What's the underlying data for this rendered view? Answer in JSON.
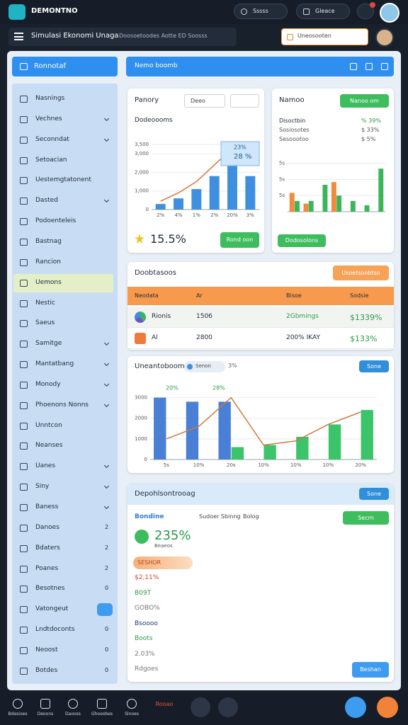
{
  "topbar": {
    "app_name": "DEMONTNO",
    "pills": [
      "Sssss",
      "Gleace"
    ]
  },
  "header": {
    "title": "Simulasi Ekonomi Unaga",
    "subtitle": "Doosoetoodes Aotte ED Soosss",
    "search": "Uneosooten"
  },
  "sidebar": {
    "title": "Ronnotaf",
    "active": 9,
    "items": [
      {
        "label": "Nasnings"
      },
      {
        "label": "Vechnes",
        "expandable": true
      },
      {
        "label": "Seconndat",
        "expandable": true
      },
      {
        "label": "Setoacian"
      },
      {
        "label": "Uestemgtatonent"
      },
      {
        "label": "Dasted",
        "expandable": true
      },
      {
        "label": "Podoenteleis"
      },
      {
        "label": "Bastnag"
      },
      {
        "label": "Rancion"
      },
      {
        "label": "Uemons"
      },
      {
        "label": "Nestic"
      },
      {
        "label": "Saeus"
      },
      {
        "label": "Samitge",
        "expandable": true
      },
      {
        "label": "Mantatbang",
        "expandable": true
      },
      {
        "label": "Monody",
        "expandable": true
      },
      {
        "label": "Phoenons Nonns",
        "expandable": true
      },
      {
        "label": "Unntcon"
      },
      {
        "label": "Neanses"
      },
      {
        "label": "Uanes",
        "expandable": true
      },
      {
        "label": "Siny",
        "expandable": true
      },
      {
        "label": "Baness",
        "expandable": true
      },
      {
        "label": "Danoes",
        "count": "2"
      },
      {
        "label": "Bdaters",
        "count": "2"
      },
      {
        "label": "Poanes",
        "count": "2"
      },
      {
        "label": "Besotnes",
        "count": "0"
      },
      {
        "label": "Vatongeut",
        "badge": true
      },
      {
        "label": "Lndtdoconts",
        "count": "0"
      },
      {
        "label": "Neoost",
        "count": "0"
      },
      {
        "label": "Botdes",
        "count": "0"
      }
    ]
  },
  "banner": {
    "title": "Nemo boomb"
  },
  "overview": {
    "title": "Panory",
    "dropdown": "Deeo",
    "subtitle": "Dodeoooms",
    "stat": "15.5%",
    "button": "Rond oon",
    "chart": {
      "type": "bar",
      "categories": [
        "2%",
        "4%",
        "1%",
        "2%",
        "20%",
        "3%"
      ],
      "series": [
        {
          "color": "#3f8fe0",
          "values": [
            300,
            600,
            1100,
            1800,
            3000,
            1800
          ]
        },
        {
          "color": "#d9743b",
          "style": "line",
          "values": [
            450,
            900,
            1500,
            2400,
            3300,
            null
          ]
        }
      ],
      "ylim": [
        0,
        3500
      ],
      "yticks": [
        0,
        {
          "value": 1000,
          "label": "1,000"
        },
        {
          "value": 2000,
          "label": "2,000"
        },
        {
          "value": 3000,
          "label": "3,000"
        },
        {
          "value": 3500,
          "label": "3,500"
        }
      ],
      "annotations": [
        "23%",
        "28 %"
      ]
    }
  },
  "side_card": {
    "title": "Namoo",
    "button": "Nanoo om",
    "footer_button": "Dodosolons",
    "lines": [
      {
        "left": "Disoctbin",
        "right": "% 39%"
      },
      {
        "left": "Sosiosotes",
        "right": "$ 33%"
      },
      {
        "left": "Sesoootoo",
        "right": "$ 5%"
      }
    ],
    "chart": {
      "type": "bar",
      "categories": [
        null,
        null,
        null,
        null,
        null,
        null,
        null
      ],
      "series": [
        {
          "color": "#f08a3c",
          "values": [
            35,
            15,
            null,
            55,
            null,
            null,
            null
          ]
        },
        {
          "color": "#3cb55a",
          "values": [
            20,
            20,
            50,
            30,
            20,
            12,
            80
          ]
        }
      ],
      "ylim": [
        0,
        100
      ],
      "yticks": [
        {
          "value": 30,
          "label": "5s"
        },
        {
          "value": 60,
          "label": "5s"
        },
        {
          "value": 90,
          "label": "5s"
        }
      ]
    }
  },
  "table": {
    "title": "Doobtasoos",
    "button": "Usoetsoobtso",
    "columns": [
      "Neodata",
      "Ar",
      "Bisoe",
      "Sodsie"
    ],
    "rows": [
      [
        "Rionis",
        "1506",
        "2Gbmings",
        "$1339%"
      ],
      [
        "Al",
        "2800",
        "200% IKAY",
        "$133%"
      ]
    ]
  },
  "trend": {
    "title": "Uneantoboom",
    "chip": "Senon",
    "chip_note": "3%",
    "button": "Sone",
    "chart": {
      "type": "bar",
      "categories": [
        "5s",
        "10%",
        "20s",
        "10%",
        "10%",
        "10%",
        "20%"
      ],
      "series": [
        {
          "color": "#4a7fd6",
          "values": [
            3000,
            2800,
            2800,
            null,
            null,
            null,
            null
          ]
        },
        {
          "color": "#3cc46a",
          "values": [
            null,
            null,
            600,
            700,
            1100,
            1700,
            2400
          ]
        },
        {
          "color": "#d07a3a",
          "style": "line",
          "values": [
            1000,
            1600,
            3000,
            700,
            900,
            1700,
            2300
          ]
        }
      ],
      "ylim": [
        0,
        3500
      ],
      "yticks": [
        0,
        1000,
        2000,
        3000
      ],
      "annotations": [
        "20%",
        "28%"
      ]
    }
  },
  "detail": {
    "title": "Depohlsontrooag",
    "button": "Sone",
    "subheading": "Bondine",
    "tabs": [
      "Sudoer Sbinng",
      "Bolog"
    ],
    "action": "Secrn",
    "stat": "235%",
    "stat_note": "Beaeos",
    "tag": "SESHOR",
    "lines": [
      "$2,11%",
      "B09T",
      "GOBO%",
      "Bsoooo",
      "Boots",
      "2.03%",
      "Rdgoes"
    ],
    "footer_button": "Beshan"
  },
  "bottom_nav": [
    "Bdesioes",
    "Deoons",
    "Daooss",
    "Ghooobes",
    "Slnoes",
    "Rooao"
  ]
}
